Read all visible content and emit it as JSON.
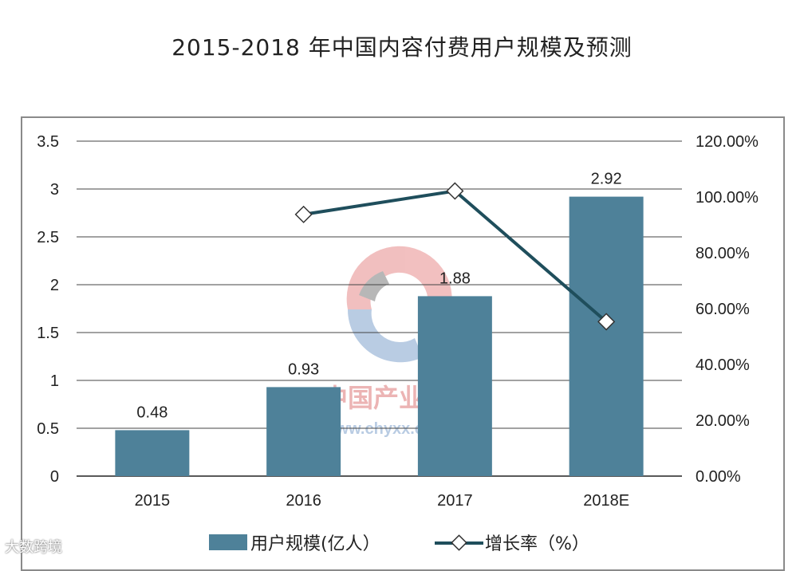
{
  "chart_data": {
    "type": "bar",
    "title": "2015-2018 年中国内容付费用户规模及预测",
    "categories": [
      "2015",
      "2016",
      "2017",
      "2018E"
    ],
    "series": [
      {
        "name": "用户规模(亿人）",
        "type": "bar",
        "values": [
          0.48,
          0.93,
          1.88,
          2.92
        ],
        "color": "#4e8199",
        "data_labels": [
          "0.48",
          "0.93",
          "1.88",
          "2.92"
        ]
      },
      {
        "name": "增长率（%）",
        "type": "line",
        "axis": "right",
        "values": [
          null,
          93.75,
          102.15,
          55.32
        ],
        "color": "#1f4e5c"
      }
    ],
    "y_left": {
      "ylim": [
        0,
        3.5
      ],
      "ticks": [
        "0",
        "0.5",
        "1",
        "1.5",
        "2",
        "2.5",
        "3",
        "3.5"
      ]
    },
    "y_right": {
      "ylim": [
        0,
        120
      ],
      "ticks": [
        "0.00%",
        "20.00%",
        "40.00%",
        "60.00%",
        "80.00%",
        "100.00%",
        "120.00%"
      ]
    },
    "grid": true,
    "legend": "bottom"
  },
  "watermark": {
    "text": "中国产业信息",
    "url": "www.chyxx.com"
  },
  "corner_mark": {
    "text": "大数跨境"
  }
}
